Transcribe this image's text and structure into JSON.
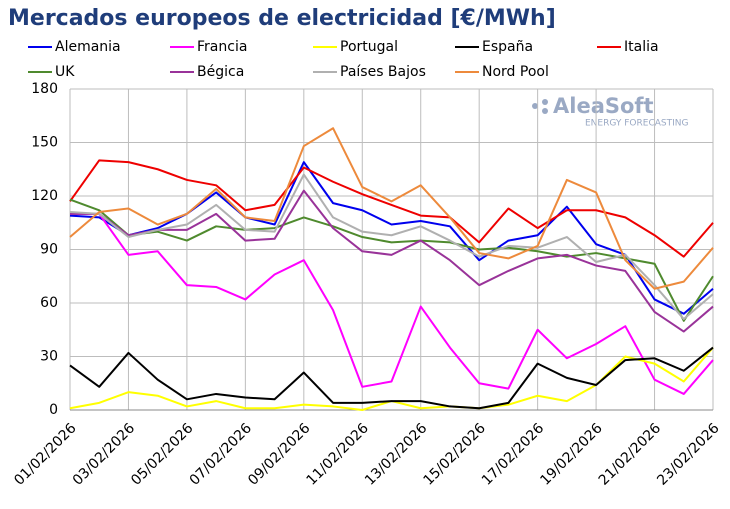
{
  "chart_data": {
    "type": "line",
    "title": "Mercados europeos de electricidad [€/MWh]",
    "categories": [
      "01/02/2026",
      null,
      "03/02/2026",
      null,
      "05/02/2026",
      null,
      "07/02/2026",
      null,
      "09/02/2026",
      null,
      "11/02/2026",
      null,
      "13/02/2026",
      null,
      "15/02/2026",
      null,
      "17/02/2026",
      null,
      "19/02/2026",
      null,
      "21/02/2026",
      null,
      "23/02/2026"
    ],
    "series": [
      {
        "name": "Alemania",
        "color": "#0000ee",
        "values": [
          109,
          108,
          98,
          102,
          110,
          122,
          108,
          104,
          139,
          116,
          112,
          104,
          106,
          103,
          84,
          95,
          98,
          114,
          93,
          87,
          62,
          54,
          68
        ]
      },
      {
        "name": "Francia",
        "color": "#ff00ff",
        "values": [
          110,
          110,
          87,
          89,
          70,
          69,
          62,
          76,
          84,
          56,
          13,
          16,
          58,
          35,
          15,
          12,
          45,
          29,
          37,
          47,
          17,
          9,
          28
        ]
      },
      {
        "name": "Portugal",
        "color": "#ffff00",
        "values": [
          1,
          4,
          10,
          8,
          2,
          5,
          1,
          1,
          3,
          2,
          0,
          5,
          1,
          2,
          1,
          3,
          8,
          5,
          14,
          30,
          26,
          16,
          35
        ]
      },
      {
        "name": "España",
        "color": "#000000",
        "values": [
          25,
          13,
          32,
          17,
          6,
          9,
          7,
          6,
          21,
          4,
          4,
          5,
          5,
          2,
          1,
          4,
          26,
          18,
          14,
          28,
          29,
          22,
          35
        ]
      },
      {
        "name": "Italia",
        "color": "#ee0000",
        "values": [
          117,
          140,
          139,
          135,
          129,
          126,
          112,
          115,
          136,
          128,
          121,
          115,
          109,
          108,
          94,
          113,
          102,
          112,
          112,
          108,
          98,
          86,
          105
        ]
      },
      {
        "name": "UK",
        "color": "#4f8a2e",
        "values": [
          118,
          112,
          98,
          100,
          95,
          103,
          101,
          102,
          108,
          103,
          97,
          94,
          95,
          94,
          90,
          91,
          89,
          86,
          88,
          85,
          82,
          50,
          75
        ]
      },
      {
        "name": "Bégica",
        "color": "#993399",
        "values": [
          110,
          110,
          98,
          101,
          101,
          110,
          95,
          96,
          123,
          102,
          89,
          87,
          95,
          84,
          70,
          78,
          85,
          87,
          81,
          78,
          55,
          44,
          58
        ]
      },
      {
        "name": "Países Bajos",
        "color": "#b0b0b0",
        "values": [
          111,
          110,
          97,
          101,
          104,
          115,
          101,
          100,
          132,
          108,
          100,
          98,
          103,
          95,
          86,
          92,
          91,
          97,
          83,
          87,
          70,
          51,
          65
        ]
      },
      {
        "name": "Nord Pool",
        "color": "#ed8a3c",
        "values": [
          97,
          111,
          113,
          104,
          110,
          124,
          108,
          106,
          148,
          158,
          125,
          117,
          126,
          108,
          88,
          85,
          92,
          129,
          122,
          84,
          68,
          72,
          91
        ]
      }
    ],
    "ylim": [
      0,
      180
    ],
    "yticks": [
      0,
      30,
      60,
      90,
      120,
      150,
      180
    ],
    "grid": true
  },
  "logo": {
    "name": "AleaSoft",
    "tagline": "ENERGY FORECASTING"
  }
}
